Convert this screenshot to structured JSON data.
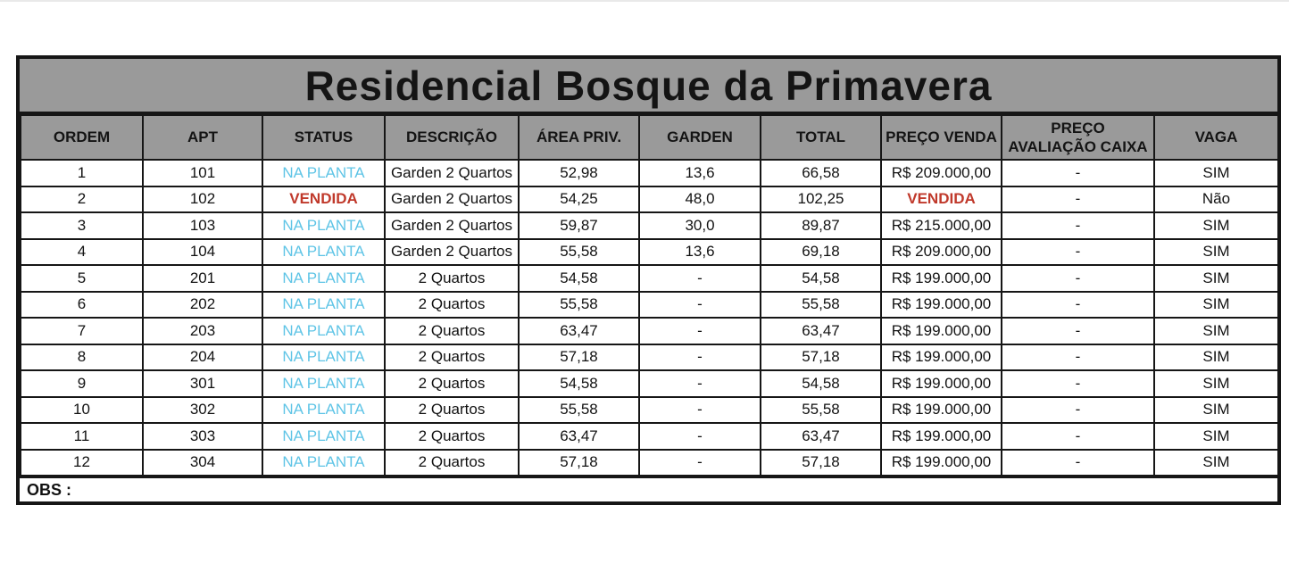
{
  "page": {
    "background": "#ffffff"
  },
  "colors": {
    "header_bg": "#9a9a9a",
    "border": "#161616",
    "text": "#121212",
    "status_na_planta": "#5ec4e6",
    "status_vendida": "#c0392b",
    "top_divider": "#e9e9e9"
  },
  "table": {
    "title": "Residencial Bosque da Primavera",
    "columns": [
      "ORDEM",
      "APT",
      "STATUS",
      "DESCRIÇÃO",
      "ÁREA PRIV.",
      "GARDEN",
      "TOTAL",
      "PREÇO VENDA",
      "PREÇO AVALIAÇÃO CAIXA",
      "VAGA"
    ],
    "status_plan_label": "NA PLANTA",
    "status_sold_label": "VENDIDA",
    "rows": [
      [
        "1",
        "101",
        "NA PLANTA",
        "Garden 2 Quartos",
        "52,98",
        "13,6",
        "66,58",
        "R$ 209.000,00",
        "-",
        "SIM"
      ],
      [
        "2",
        "102",
        "VENDIDA",
        "Garden 2 Quartos",
        "54,25",
        "48,0",
        "102,25",
        "VENDIDA",
        "-",
        "Não"
      ],
      [
        "3",
        "103",
        "NA PLANTA",
        "Garden 2 Quartos",
        "59,87",
        "30,0",
        "89,87",
        "R$ 215.000,00",
        "-",
        "SIM"
      ],
      [
        "4",
        "104",
        "NA PLANTA",
        "Garden 2 Quartos",
        "55,58",
        "13,6",
        "69,18",
        "R$ 209.000,00",
        "-",
        "SIM"
      ],
      [
        "5",
        "201",
        "NA PLANTA",
        "2 Quartos",
        "54,58",
        "-",
        "54,58",
        "R$ 199.000,00",
        "-",
        "SIM"
      ],
      [
        "6",
        "202",
        "NA PLANTA",
        "2 Quartos",
        "55,58",
        "-",
        "55,58",
        "R$ 199.000,00",
        "-",
        "SIM"
      ],
      [
        "7",
        "203",
        "NA PLANTA",
        "2 Quartos",
        "63,47",
        "-",
        "63,47",
        "R$ 199.000,00",
        "-",
        "SIM"
      ],
      [
        "8",
        "204",
        "NA PLANTA",
        "2 Quartos",
        "57,18",
        "-",
        "57,18",
        "R$ 199.000,00",
        "-",
        "SIM"
      ],
      [
        "9",
        "301",
        "NA PLANTA",
        "2 Quartos",
        "54,58",
        "-",
        "54,58",
        "R$ 199.000,00",
        "-",
        "SIM"
      ],
      [
        "10",
        "302",
        "NA PLANTA",
        "2 Quartos",
        "55,58",
        "-",
        "55,58",
        "R$ 199.000,00",
        "-",
        "SIM"
      ],
      [
        "11",
        "303",
        "NA PLANTA",
        "2 Quartos",
        "63,47",
        "-",
        "63,47",
        "R$ 199.000,00",
        "-",
        "SIM"
      ],
      [
        "12",
        "304",
        "NA PLANTA",
        "2 Quartos",
        "57,18",
        "-",
        "57,18",
        "R$ 199.000,00",
        "-",
        "SIM"
      ]
    ],
    "obs_label": "OBS :"
  }
}
